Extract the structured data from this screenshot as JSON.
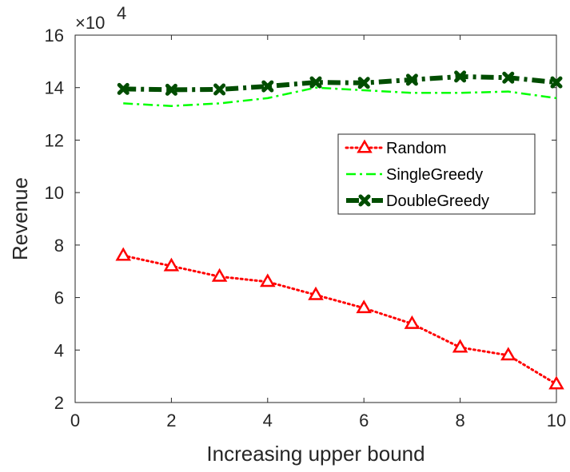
{
  "chart_data": {
    "type": "line",
    "xlabel": "Increasing upper bound",
    "ylabel": "Revenue",
    "y_multiplier": "×10",
    "y_multiplier_exponent": "4",
    "xlim": [
      0,
      10
    ],
    "ylim": [
      2,
      16
    ],
    "xticks": [
      0,
      2,
      4,
      6,
      8,
      10
    ],
    "yticks": [
      2,
      4,
      6,
      8,
      10,
      12,
      14,
      16
    ],
    "grid": false,
    "legend_position": "center-right",
    "x": [
      1,
      2,
      3,
      4,
      5,
      6,
      7,
      8,
      9,
      10
    ],
    "series": [
      {
        "name": "Random",
        "values": [
          7.6,
          7.2,
          6.8,
          6.6,
          6.1,
          5.6,
          5.0,
          4.1,
          3.8,
          2.7
        ],
        "color": "#ff0000",
        "line_style": "dotted",
        "marker": "triangle"
      },
      {
        "name": "SingleGreedy",
        "values": [
          13.4,
          13.3,
          13.4,
          13.6,
          14.0,
          13.9,
          13.8,
          13.8,
          13.85,
          13.6
        ],
        "color": "#00ff00",
        "line_style": "dash-dot",
        "marker": "none"
      },
      {
        "name": "DoubleGreedy",
        "values": [
          13.95,
          13.92,
          13.93,
          14.05,
          14.2,
          14.18,
          14.3,
          14.42,
          14.38,
          14.2
        ],
        "color": "#004d00",
        "line_style": "dash-dot",
        "marker": "x"
      }
    ]
  }
}
